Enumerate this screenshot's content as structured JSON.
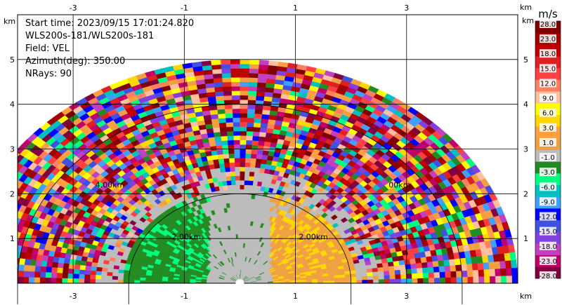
{
  "info": {
    "start_time": "Start time: 2023/09/15 17:01:24.820",
    "instrument": "WLS200s-181/WLS200s-181",
    "field": "Field: VEL",
    "azimuth": "Azimuth(deg): 350.00",
    "nrays": "NRays: 90"
  },
  "chart_data": {
    "type": "heatmap",
    "subtype": "radar-rhi-velocity",
    "xlim": [
      -4,
      5
    ],
    "ylim": [
      0,
      6
    ],
    "x_ticks": [
      "-3",
      "-1",
      "1",
      "3"
    ],
    "y_ticks": [
      "1",
      "2",
      "3",
      "4",
      "5"
    ],
    "x_tick_values": [
      -3,
      -1,
      1,
      3
    ],
    "y_tick_values": [
      1,
      2,
      3,
      4,
      5
    ],
    "x_unit": "km",
    "y_unit": "km",
    "grid": true,
    "range_rings_km": [
      2,
      4
    ],
    "range_ring_labels": [
      "2.00km",
      "4.00km",
      "2.00km",
      "00km"
    ],
    "max_range_km": 5.0,
    "colorbar": {
      "unit": "m/s",
      "ticks": [
        "-28.0",
        "-23.0",
        "-18.0",
        "-15.0",
        "-12.0",
        "-9.0",
        "-6.0",
        "-3.0",
        "-1.0",
        "1.0",
        "3.0",
        "6.0",
        "9.0",
        "12.0",
        "15.0",
        "18.0",
        "23.0",
        "28.0"
      ],
      "colors": [
        "#800040",
        "#c0006b",
        "#c040c0",
        "#8040e0",
        "#4050e0",
        "#0000ff",
        "#40a0ff",
        "#00c0c0",
        "#00ff80",
        "#228b22",
        "#bcbcbc",
        "#f0a040",
        "#ffa040",
        "#ffd700",
        "#ffff00",
        "#ffc0a0",
        "#ff8060",
        "#ff4040",
        "#e02020",
        "#c00000",
        "#a00000",
        "#800000"
      ]
    }
  }
}
